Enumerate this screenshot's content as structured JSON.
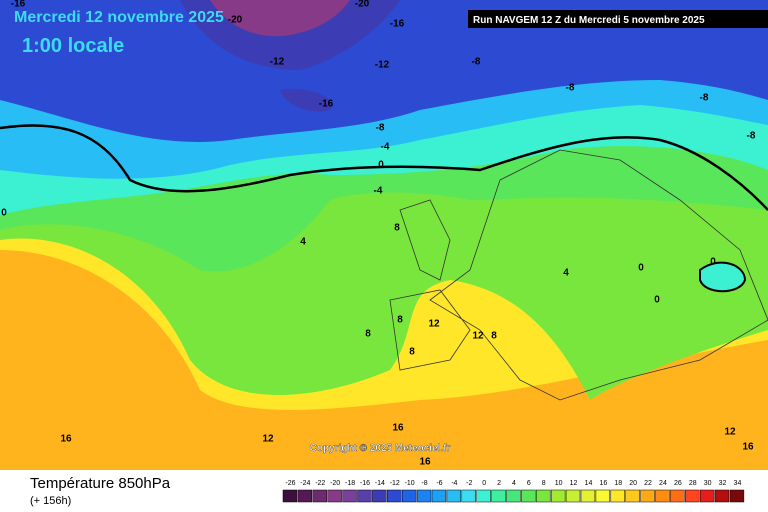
{
  "header": {
    "date": "Mercredi 12 novembre 2025",
    "time": "1:00 locale",
    "run": "Run NAVGEM 12 Z du Mercredi 5 novembre 2025"
  },
  "map": {
    "contour_labels": [
      "-16",
      "-20",
      "-20",
      "-16",
      "-12",
      "-12",
      "-8",
      "-8",
      "-8",
      "-8",
      "-16",
      "-8",
      "-4",
      "0",
      "-4",
      "0",
      "4",
      "8",
      "4",
      "0",
      "0",
      "0",
      "8",
      "12",
      "12",
      "8",
      "8",
      "8",
      "16",
      "12",
      "16",
      "16",
      "12",
      "16"
    ],
    "copyright": "Copyright © 2025 Meteociel.fr"
  },
  "footer": {
    "title": "Température 850hPa",
    "lead": "(+ 156h)"
  },
  "legend": {
    "scale": [
      -26,
      -24,
      -22,
      -20,
      -18,
      -16,
      -14,
      -12,
      -10,
      -8,
      -6,
      -4,
      -2,
      0,
      2,
      4,
      6,
      8,
      10,
      12,
      14,
      16,
      18,
      20,
      22,
      24,
      26,
      28,
      30,
      32,
      34
    ],
    "colors": [
      "#3c0f3c",
      "#551a55",
      "#6e2a6e",
      "#873a87",
      "#7a3f9a",
      "#5b3fa8",
      "#3c3cb4",
      "#2d4bd2",
      "#1e64e6",
      "#1e82f0",
      "#1ea0f5",
      "#28bef5",
      "#3cdcf0",
      "#3cf0d2",
      "#3cf0a0",
      "#46e678",
      "#5ae65a",
      "#78e63c",
      "#a0eb32",
      "#c8f032",
      "#e6f032",
      "#fafa32",
      "#ffe628",
      "#ffc81e",
      "#ffaa14",
      "#ff8c14",
      "#ff6e14",
      "#ff461e",
      "#e61e1e",
      "#b40f0f",
      "#780a0a"
    ]
  }
}
